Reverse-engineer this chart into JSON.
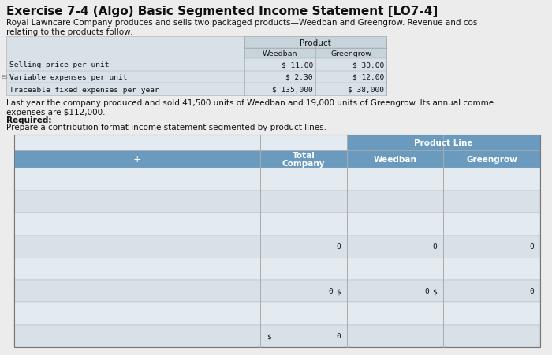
{
  "title": "Exercise 7-4 (Algo) Basic Segmented Income Statement [LO7-4]",
  "intro_text": "Royal Lawncare Company produces and sells two packaged products—Weedban and Greengrow. Revenue and cos\nrelating to the products follow:",
  "product_table_rows": [
    [
      "Selling price per unit",
      "$ 11.00",
      "$ 30.00"
    ],
    [
      "Variable expenses per unit",
      "$ 2.30",
      "$ 12.00"
    ],
    [
      "Traceable fixed expenses per year",
      "$ 135,000",
      "$ 38,000"
    ]
  ],
  "middle_text": "Last year the company produced and sold 41,500 units of Weedban and 19,000 units of Greengrow. Its annual comme\nexpenses are $112,000.",
  "required_label": "Required:",
  "required_body": "Prepare a contribution format income statement segmented by product lines.",
  "income_col_headers": [
    "Total\nCompany",
    "Weedban",
    "Greengrow"
  ],
  "income_header1": "Product Line",
  "income_rows": [
    [
      "",
      "",
      "",
      ""
    ],
    [
      "",
      "",
      "",
      ""
    ],
    [
      "",
      "",
      "",
      ""
    ],
    [
      "",
      "0",
      "0",
      "0"
    ],
    [
      "",
      "",
      "",
      ""
    ],
    [
      "",
      "0",
      "0",
      "0"
    ],
    [
      "",
      "",
      "",
      ""
    ],
    [
      "",
      "0",
      "",
      ""
    ]
  ],
  "income_row_has_dollar_prefix": [
    false,
    false,
    false,
    false,
    false,
    true,
    false,
    true
  ],
  "income_dollar_prefix_col": [
    false,
    false,
    false,
    false,
    false,
    [
      false,
      true,
      true
    ],
    false,
    [
      true,
      false,
      false
    ]
  ],
  "plus_symbol": "+",
  "page_artifact": "es",
  "bg_page": "#ececec",
  "bg_table_light": "#d8e0e8",
  "bg_table_lighter": "#e4ebf0",
  "bg_table_white": "#f0f4f7",
  "header_blue": "#6a9bbf",
  "product_hdr_bg": "#c8d4dc",
  "border_color": "#aaaaaa",
  "text_dark": "#111111",
  "text_mono": "#111111",
  "font_title": 11,
  "font_body": 7.5,
  "font_mono": 6.8
}
